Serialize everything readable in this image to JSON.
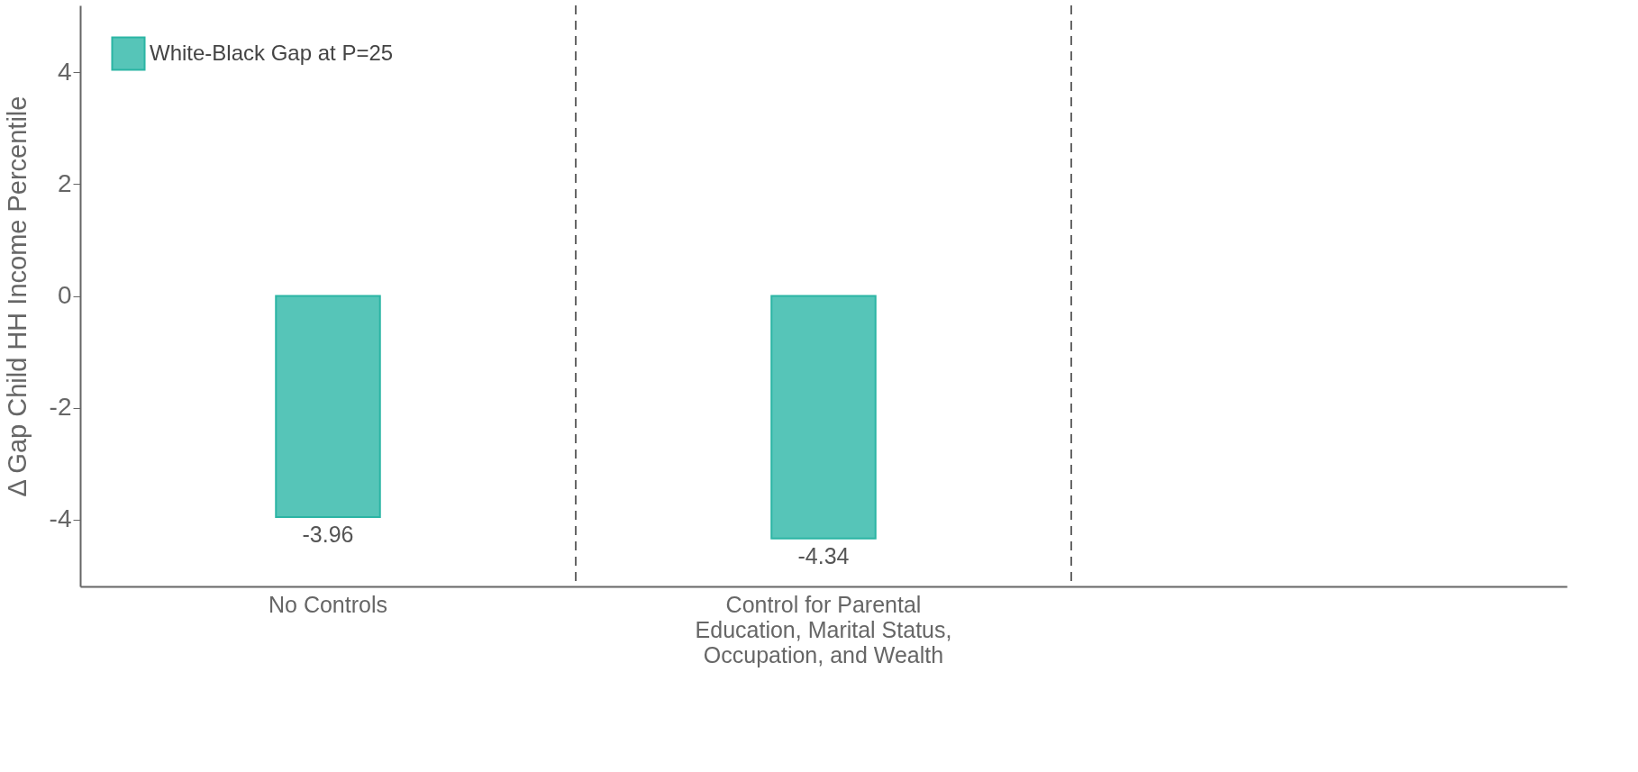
{
  "chart_data": {
    "type": "bar",
    "ylabel": "Δ Gap Child HH Income Percentile",
    "categories": [
      "No Controls",
      "Control for Parental Education, Marital Status, Occupation, and Wealth",
      null
    ],
    "series": [
      {
        "name": "White-Black Gap at P=25",
        "color": "#56c5b8",
        "values": [
          -3.96,
          -4.34,
          null
        ]
      }
    ],
    "ylim": [
      -5.2,
      5.2
    ],
    "yticks": [
      -4,
      -2,
      0,
      2,
      4
    ],
    "legend": "top left",
    "data_labels": true
  }
}
